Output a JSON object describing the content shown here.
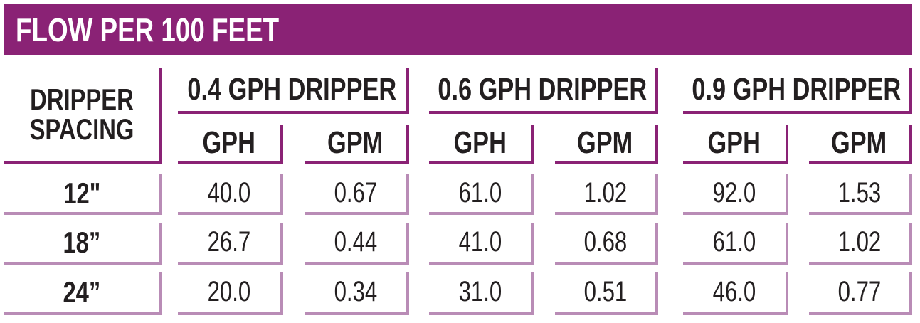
{
  "title": "FLOW PER 100 FEET",
  "table": {
    "corner_header": "DRIPPER SPACING",
    "groups": [
      "0.4 GPH DRIPPER",
      "0.6 GPH DRIPPER",
      "0.9 GPH DRIPPER"
    ],
    "subheaders": [
      "GPH",
      "GPM",
      "GPH",
      "GPM",
      "GPH",
      "GPM"
    ],
    "rows": [
      {
        "label": "12\"",
        "values": [
          "40.0",
          "0.67",
          "61.0",
          "1.02",
          "92.0",
          "1.53"
        ]
      },
      {
        "label": "18”",
        "values": [
          "26.7",
          "0.44",
          "41.0",
          "0.68",
          "61.0",
          "1.02"
        ]
      },
      {
        "label": "24”",
        "values": [
          "20.0",
          "0.34",
          "31.0",
          "0.51",
          "46.0",
          "0.77"
        ]
      }
    ]
  }
}
